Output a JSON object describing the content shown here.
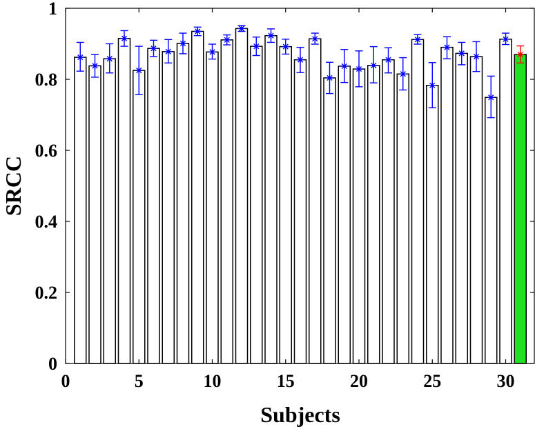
{
  "chart_data": {
    "type": "bar",
    "xlabel": "Subjects",
    "ylabel": "SRCC",
    "xlim": [
      0,
      32
    ],
    "ylim": [
      0,
      1
    ],
    "xticks": [
      "0",
      "5",
      "10",
      "15",
      "20",
      "25",
      "30"
    ],
    "yticks": [
      "0",
      "0.2",
      "0.4",
      "0.6",
      "0.8",
      "1"
    ],
    "grid": false,
    "x": [
      1,
      2,
      3,
      4,
      5,
      6,
      7,
      8,
      9,
      10,
      11,
      12,
      13,
      14,
      15,
      16,
      17,
      18,
      19,
      20,
      21,
      22,
      23,
      24,
      25,
      26,
      27,
      28,
      29,
      30,
      31
    ],
    "values": [
      0.862,
      0.838,
      0.858,
      0.915,
      0.825,
      0.887,
      0.878,
      0.901,
      0.935,
      0.877,
      0.911,
      0.943,
      0.893,
      0.923,
      0.892,
      0.855,
      0.914,
      0.804,
      0.837,
      0.829,
      0.839,
      0.855,
      0.815,
      0.912,
      0.783,
      0.89,
      0.873,
      0.864,
      0.749,
      0.913,
      0.87
    ],
    "error_low": [
      0.823,
      0.806,
      0.818,
      0.893,
      0.757,
      0.864,
      0.846,
      0.872,
      0.923,
      0.857,
      0.897,
      0.935,
      0.867,
      0.904,
      0.871,
      0.819,
      0.899,
      0.76,
      0.791,
      0.779,
      0.79,
      0.818,
      0.77,
      0.899,
      0.72,
      0.858,
      0.841,
      0.822,
      0.692,
      0.898,
      0.846
    ],
    "error_high": [
      0.904,
      0.87,
      0.9,
      0.937,
      0.893,
      0.91,
      0.912,
      0.93,
      0.947,
      0.899,
      0.925,
      0.951,
      0.919,
      0.942,
      0.913,
      0.89,
      0.93,
      0.848,
      0.884,
      0.88,
      0.892,
      0.889,
      0.861,
      0.926,
      0.847,
      0.92,
      0.904,
      0.906,
      0.809,
      0.93,
      0.894
    ],
    "bar_colors": [
      "#ffffff",
      "#ffffff",
      "#ffffff",
      "#ffffff",
      "#ffffff",
      "#ffffff",
      "#ffffff",
      "#ffffff",
      "#ffffff",
      "#ffffff",
      "#ffffff",
      "#ffffff",
      "#ffffff",
      "#ffffff",
      "#ffffff",
      "#ffffff",
      "#ffffff",
      "#ffffff",
      "#ffffff",
      "#ffffff",
      "#ffffff",
      "#ffffff",
      "#ffffff",
      "#ffffff",
      "#ffffff",
      "#ffffff",
      "#ffffff",
      "#ffffff",
      "#ffffff",
      "#ffffff",
      "#22e022"
    ],
    "error_colors": [
      "#0000ff",
      "#0000ff",
      "#0000ff",
      "#0000ff",
      "#0000ff",
      "#0000ff",
      "#0000ff",
      "#0000ff",
      "#0000ff",
      "#0000ff",
      "#0000ff",
      "#0000ff",
      "#0000ff",
      "#0000ff",
      "#0000ff",
      "#0000ff",
      "#0000ff",
      "#0000ff",
      "#0000ff",
      "#0000ff",
      "#0000ff",
      "#0000ff",
      "#0000ff",
      "#0000ff",
      "#0000ff",
      "#0000ff",
      "#0000ff",
      "#0000ff",
      "#0000ff",
      "#0000ff",
      "#ff0000"
    ],
    "marker": "asterisk",
    "bar_edge_color": "#000000"
  }
}
